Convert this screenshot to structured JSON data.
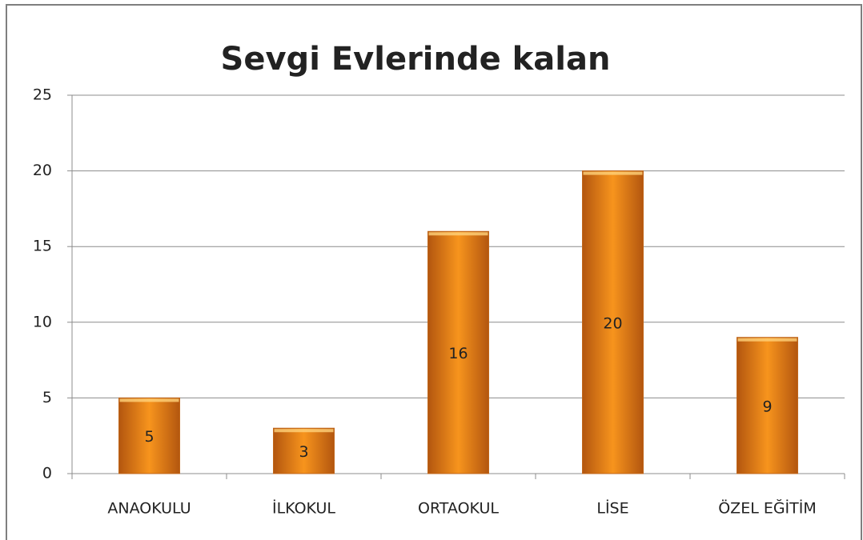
{
  "chart_data": {
    "type": "bar",
    "title": "Sevgi Evlerinde kalan",
    "categories": [
      "ANAOKULU",
      "İLKOKUL",
      "ORTAOKUL",
      "LİSE",
      "ÖZEL EĞİTİM"
    ],
    "values": [
      5,
      3,
      16,
      20,
      9
    ],
    "color": "#f7941d",
    "ylim": [
      0,
      25
    ],
    "yticks": [
      0,
      5,
      10,
      15,
      20,
      25
    ],
    "grid": true
  }
}
